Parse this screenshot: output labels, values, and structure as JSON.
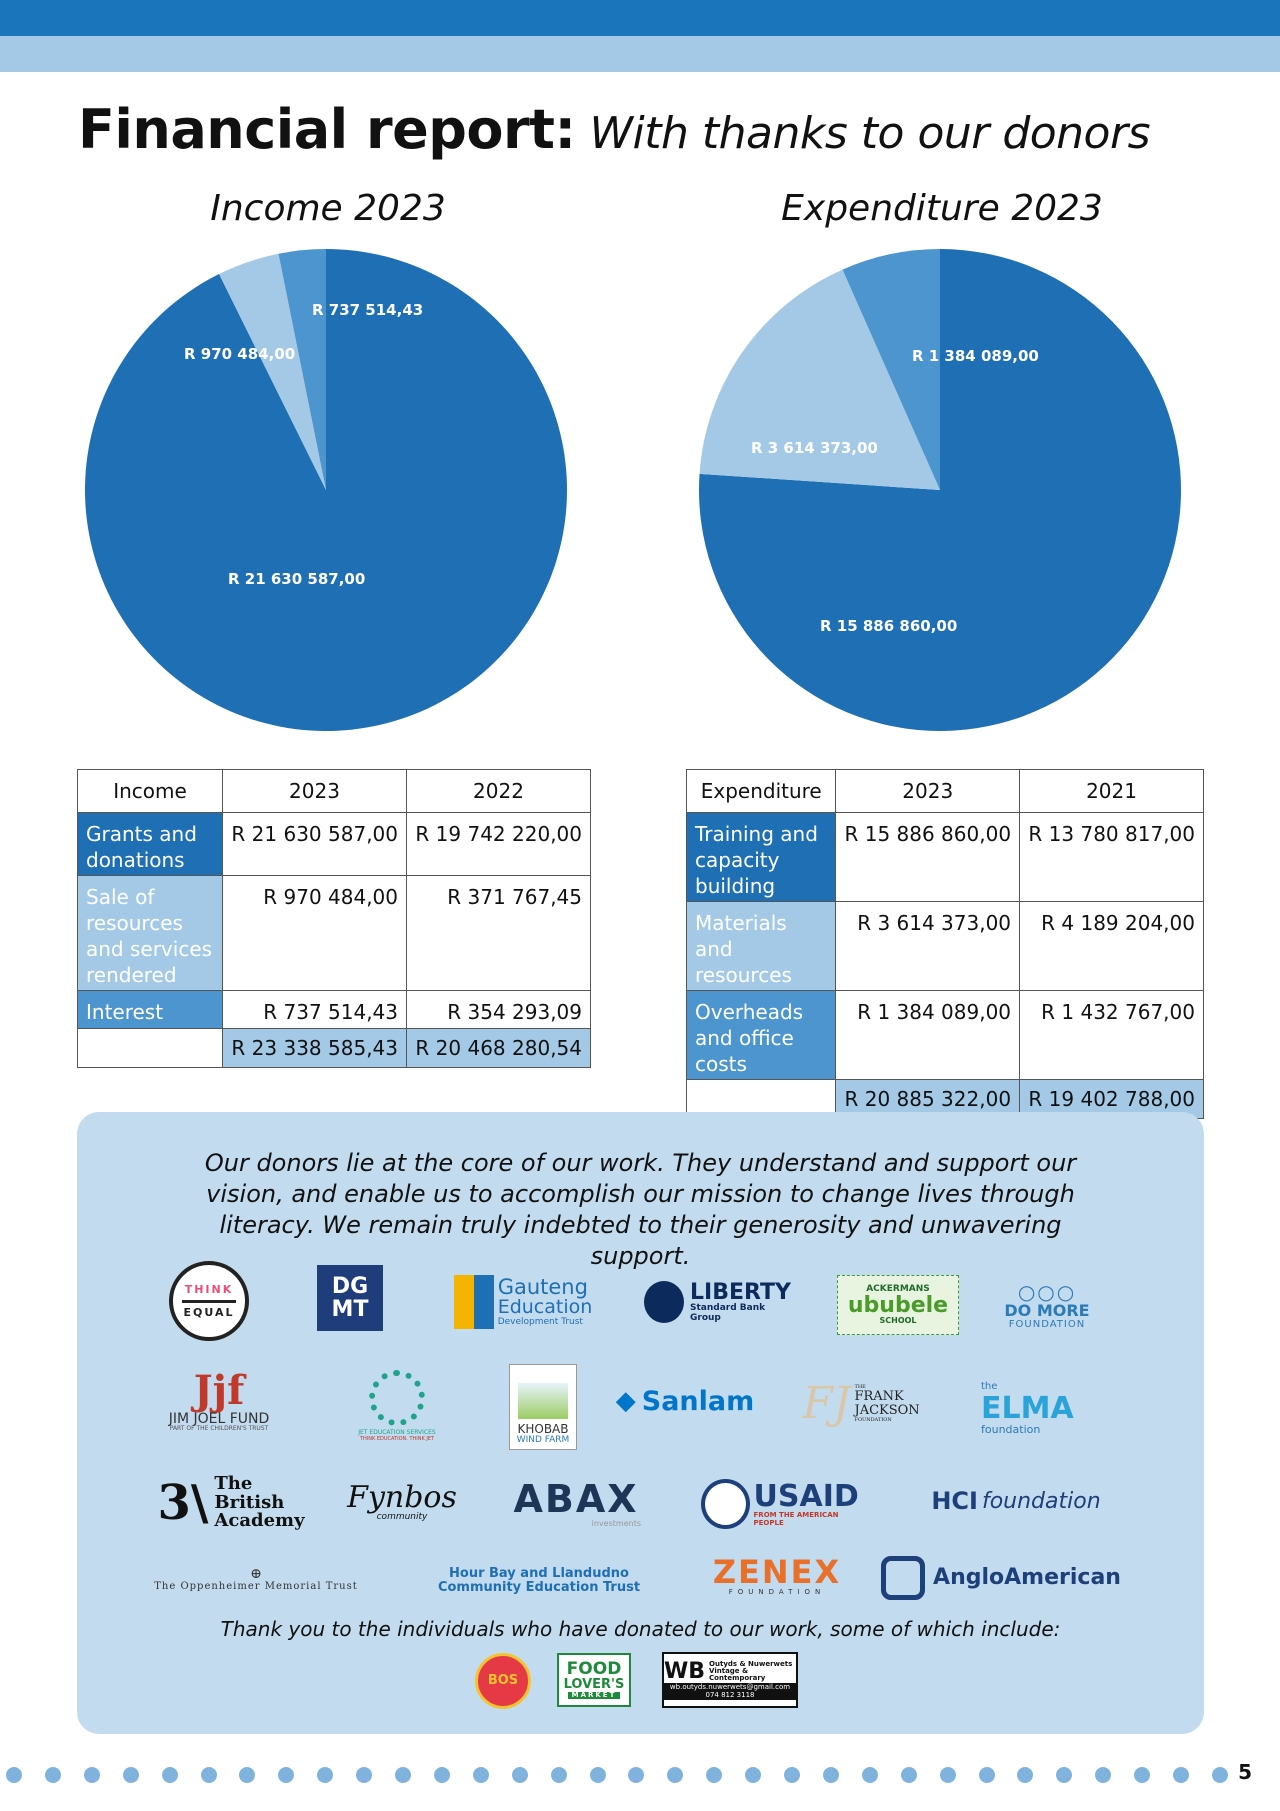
{
  "header": {
    "title_bold": "Financial report:",
    "title_italic": "With thanks to our donors"
  },
  "colors": {
    "dark_blue": "#1f6fb5",
    "light_blue": "#a3c9e6",
    "mid_blue": "#4d95cf",
    "band_blue": "#1b75bb"
  },
  "chart_data": [
    {
      "type": "pie",
      "title": "Income 2023",
      "slices": [
        {
          "label": "R 21 630 587,00",
          "value": 21630587.0,
          "color": "#1f6fb5"
        },
        {
          "label": "R 970 484,00",
          "value": 970484.0,
          "color": "#a3c9e6"
        },
        {
          "label": "R 737 514,43",
          "value": 737514.43,
          "color": "#4d95cf"
        }
      ]
    },
    {
      "type": "pie",
      "title": "Expenditure 2023",
      "slices": [
        {
          "label": "R 15 886 860,00",
          "value": 15886860.0,
          "color": "#1f6fb5"
        },
        {
          "label": "R 3 614 373,00",
          "value": 3614373.0,
          "color": "#a3c9e6"
        },
        {
          "label": "R 1 384 089,00",
          "value": 1384089.0,
          "color": "#4d95cf"
        }
      ]
    }
  ],
  "income_table": {
    "headers": [
      "Income",
      "2023",
      "2022"
    ],
    "rows": [
      {
        "label": "Grants and donations",
        "v2023": "R 21 630 587,00",
        "vprev": "R 19 742 220,00"
      },
      {
        "label": "Sale of resources and services rendered",
        "v2023": "R 970 484,00",
        "vprev": "R 371 767,45"
      },
      {
        "label": "Interest",
        "v2023": "R 737 514,43",
        "vprev": "R 354 293,09"
      }
    ],
    "total": {
      "v2023": "R 23 338 585,43",
      "vprev": "R 20 468 280,54"
    }
  },
  "expenditure_table": {
    "headers": [
      "Expenditure",
      "2023",
      "2021"
    ],
    "rows": [
      {
        "label": "Training and capacity building",
        "v2023": "R 15 886 860,00",
        "vprev": "R 13 780 817,00"
      },
      {
        "label": "Materials and resources",
        "v2023": "R 3 614 373,00",
        "vprev": "R 4 189 204,00"
      },
      {
        "label": "Overheads and office costs",
        "v2023": "R 1 384 089,00",
        "vprev": "R 1 432 767,00"
      }
    ],
    "total": {
      "v2023": "R 20 885 322,00",
      "vprev": "R 19 402 788,00"
    }
  },
  "donors": {
    "text": "Our donors lie at the core of our work. They understand and support our vision, and enable us to accomplish our mission to change lives through literacy. We remain truly indebted to their generosity and unwavering support.",
    "logos": {
      "think_equal_a": "THINK",
      "think_equal_b": "EQUAL",
      "dgmt_a": "DG",
      "dgmt_b": "MT",
      "gauteng_a": "Gauteng",
      "gauteng_b": "Education",
      "gauteng_c": "Development Trust",
      "liberty_a": "LIBERTY",
      "liberty_b": "Standard Bank Group",
      "ackermans_a": "ACKERMANS",
      "ackermans_b": "ububele",
      "ackermans_c": "SCHOOL",
      "domore_a": "DO MORE",
      "domore_b": "FOUNDATION",
      "jjf_a": "JIM JOEL FUND",
      "jjf_b": "PART OF THE CHILDREN'S TRUST",
      "jet_a": "JET EDUCATION SERVICES",
      "jet_b": "THINK EDUCATION. THINK JET",
      "khobab_a": "KHOBAB",
      "khobab_b": "WIND FARM",
      "sanlam": "Sanlam",
      "fj_a": "THE",
      "fj_b": "FRANK",
      "fj_c": "JACKSON",
      "fj_d": "FOUNDATION",
      "elma_a": "the",
      "elma_b": "ELMA",
      "elma_c": "foundation",
      "british_a": "The",
      "british_b": "British",
      "british_c": "Academy",
      "fynbos_a": "Fynbos",
      "fynbos_b": "community",
      "abax_a": "ABAX",
      "abax_b": "investments",
      "usaid_a": "USAID",
      "usaid_b": "FROM THE AMERICAN PEOPLE",
      "hci_a": "HCI",
      "hci_b": "foundation",
      "omt": "The Oppenheimer Memorial Trust",
      "hour_bay": "Hour Bay and Llandudno Community Education Trust",
      "zenex_a": "ZENEX",
      "zenex_b": "FOUNDATION",
      "anglo": "AngloAmerican"
    },
    "thanks_text": "Thank you to the individuals who have donated to our work, some of which include:",
    "individuals": {
      "bos": "BOS",
      "food_a": "FOOD",
      "food_b": "LOVER'S",
      "food_c": "MARKET",
      "wb_a": "WB",
      "wb_b": "Outyds & Nuwerwets",
      "wb_c": "Vintage & Contemporary",
      "wb_d": "wb.outyds.nuwerwets@gmail.com",
      "wb_e": "074 812 3118"
    }
  },
  "footer": {
    "page_number": "5"
  }
}
